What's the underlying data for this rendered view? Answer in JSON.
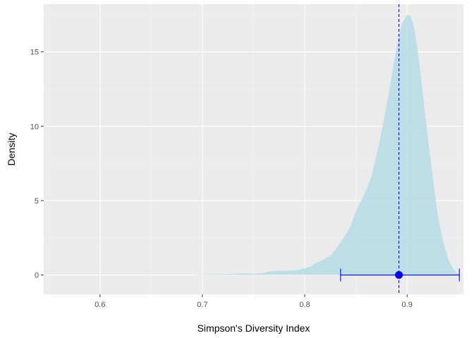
{
  "chart_data": {
    "type": "area",
    "title": "",
    "xlabel": "Simpson's Diversity Index",
    "ylabel": "Density",
    "xlim": [
      0.545,
      0.955
    ],
    "ylim": [
      -1.3,
      18.2
    ],
    "xticks": [
      {
        "value": 0.6,
        "label": "0.6"
      },
      {
        "value": 0.7,
        "label": "0.7"
      },
      {
        "value": 0.8,
        "label": "0.8"
      },
      {
        "value": 0.9,
        "label": "0.9"
      }
    ],
    "yticks": [
      {
        "value": 0,
        "label": "0"
      },
      {
        "value": 5,
        "label": "5"
      },
      {
        "value": 10,
        "label": "10"
      },
      {
        "value": 15,
        "label": "15"
      }
    ],
    "grid": true,
    "legend": "none",
    "density": {
      "x": [
        0.69,
        0.7,
        0.71,
        0.72,
        0.73,
        0.74,
        0.75,
        0.76,
        0.765,
        0.77,
        0.78,
        0.79,
        0.8,
        0.805,
        0.81,
        0.815,
        0.82,
        0.825,
        0.83,
        0.835,
        0.84,
        0.845,
        0.85,
        0.855,
        0.86,
        0.865,
        0.87,
        0.875,
        0.88,
        0.885,
        0.89,
        0.895,
        0.9,
        0.903,
        0.906,
        0.91,
        0.915,
        0.92,
        0.925,
        0.93,
        0.935,
        0.94,
        0.945,
        0.95,
        0.952
      ],
      "y": [
        0,
        0.03,
        0.05,
        0.06,
        0.08,
        0.1,
        0.08,
        0.15,
        0.25,
        0.25,
        0.3,
        0.3,
        0.45,
        0.55,
        0.75,
        0.9,
        1.1,
        1.3,
        1.7,
        2.2,
        2.7,
        3.3,
        4.3,
        5.0,
        5.7,
        6.6,
        8.0,
        9.6,
        11.4,
        13.4,
        15.4,
        16.9,
        17.5,
        17.4,
        16.9,
        15.3,
        12.4,
        9.4,
        6.6,
        4.0,
        2.3,
        1.1,
        0.4,
        0.05,
        0
      ],
      "fill": "#add8e6"
    },
    "point_estimate": {
      "x": 0.892,
      "y": 0,
      "color": "#0000ff"
    },
    "interval": {
      "lower": 0.835,
      "upper": 0.951,
      "color": "#0000ff"
    },
    "vline": {
      "x": 0.892,
      "style": "dashed",
      "color": "#0000ff"
    },
    "colors": {
      "panel": "#ebebeb",
      "grid_major": "#ffffff",
      "grid_minor": "#f5f5f5"
    }
  }
}
